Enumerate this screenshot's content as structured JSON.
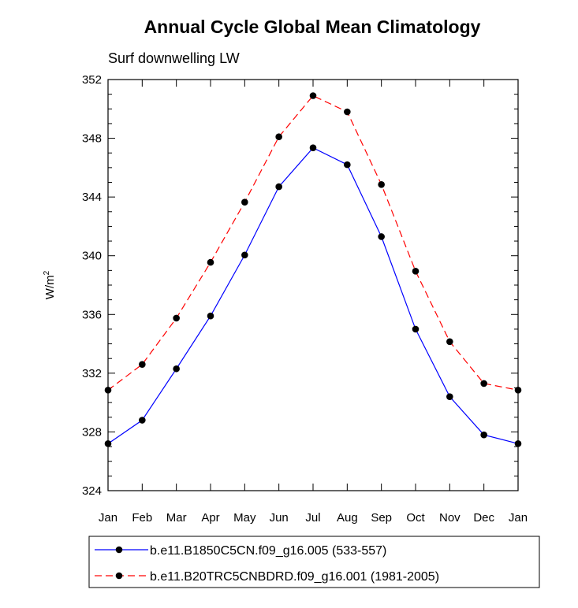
{
  "chart_data": {
    "type": "line",
    "title": "Annual Cycle Global Mean Climatology",
    "subtitle": "Surf downwelling LW",
    "ylabel_base": "W/m",
    "ylabel_sup": "2",
    "xlabel": "",
    "categories": [
      "Jan",
      "Feb",
      "Mar",
      "Apr",
      "May",
      "Jun",
      "Jul",
      "Aug",
      "Sep",
      "Oct",
      "Nov",
      "Dec",
      "Jan"
    ],
    "ylim": [
      324,
      352
    ],
    "yticks": [
      "324",
      "328",
      "332",
      "336",
      "340",
      "344",
      "348",
      "352"
    ],
    "grid": false,
    "legend_position": "bottom",
    "series": [
      {
        "name": "b.e11.B1850C5CN.f09_g16.005 (533-557)",
        "color": "#0000ff",
        "line_style": "solid",
        "marker": "filled-circle",
        "values": [
          327.2,
          328.8,
          332.3,
          335.9,
          340.05,
          344.7,
          347.35,
          346.2,
          341.3,
          335.0,
          330.4,
          327.8,
          327.2
        ]
      },
      {
        "name": "b.e11.B20TRC5CNBDRD.f09_g16.001 (1981-2005)",
        "color": "#ff0000",
        "line_style": "dashed",
        "marker": "filled-circle",
        "values": [
          330.85,
          332.6,
          335.75,
          339.55,
          343.65,
          348.1,
          350.9,
          349.8,
          344.85,
          338.95,
          334.15,
          331.3,
          330.85
        ]
      }
    ]
  }
}
